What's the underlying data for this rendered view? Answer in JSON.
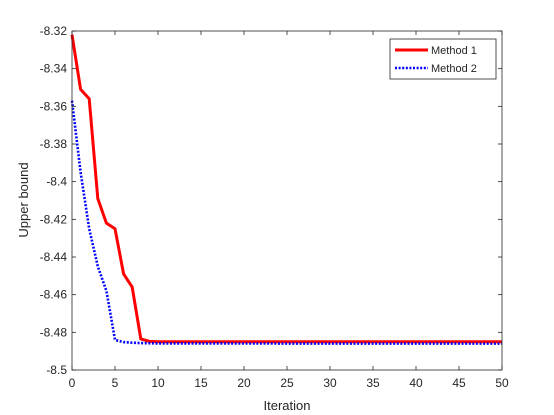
{
  "chart_data": {
    "type": "line",
    "title": "",
    "xlabel": "Iteration",
    "ylabel": "Upper bound",
    "xlim": [
      0,
      50
    ],
    "ylim": [
      -8.5,
      -8.32
    ],
    "xticks": [
      "0",
      "5",
      "10",
      "15",
      "20",
      "25",
      "30",
      "35",
      "40",
      "45",
      "50"
    ],
    "yticks": [
      "-8.32",
      "-8.34",
      "-8.36",
      "-8.38",
      "-8.4",
      "-8.42",
      "-8.44",
      "-8.46",
      "-8.48",
      "-8.5"
    ],
    "grid": false,
    "legend_position": "top-right",
    "series": [
      {
        "name": "Method 1",
        "color": "#ff0000",
        "style": "solid",
        "x": [
          0,
          1,
          2,
          3,
          4,
          5,
          6,
          7,
          8,
          9,
          10,
          50
        ],
        "y": [
          -8.322,
          -8.351,
          -8.356,
          -8.409,
          -8.422,
          -8.425,
          -8.449,
          -8.456,
          -8.4835,
          -8.4848,
          -8.485,
          -8.485
        ]
      },
      {
        "name": "Method 2",
        "color": "#0000ff",
        "style": "dotted",
        "x": [
          0,
          1,
          2,
          3,
          4,
          5,
          6,
          7,
          8,
          9,
          10,
          50
        ],
        "y": [
          -8.357,
          -8.395,
          -8.425,
          -8.445,
          -8.458,
          -8.484,
          -8.4852,
          -8.4855,
          -8.4857,
          -8.4858,
          -8.4859,
          -8.486
        ]
      }
    ]
  }
}
